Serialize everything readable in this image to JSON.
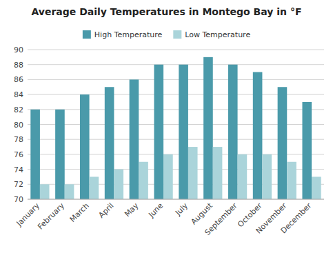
{
  "chart_data": {
    "type": "bar",
    "title": "Average Daily Temperatures in Montego Bay in °F",
    "categories": [
      "January",
      "February",
      "March",
      "April",
      "May",
      "June",
      "July",
      "August",
      "September",
      "October",
      "November",
      "December"
    ],
    "series": [
      {
        "name": "High Temperature",
        "color": "#4a9aaa",
        "values": [
          82,
          82,
          84,
          85,
          86,
          88,
          88,
          89,
          88,
          87,
          85,
          83
        ]
      },
      {
        "name": "Low Temperature",
        "color": "#aad4da",
        "values": [
          72,
          72,
          73,
          74,
          75,
          76,
          77,
          77,
          76,
          76,
          75,
          73
        ]
      }
    ],
    "ylim": [
      70,
      90
    ],
    "yticks": [
      70,
      72,
      74,
      76,
      78,
      80,
      82,
      84,
      86,
      88,
      90
    ],
    "grid": true,
    "legend": "top"
  }
}
